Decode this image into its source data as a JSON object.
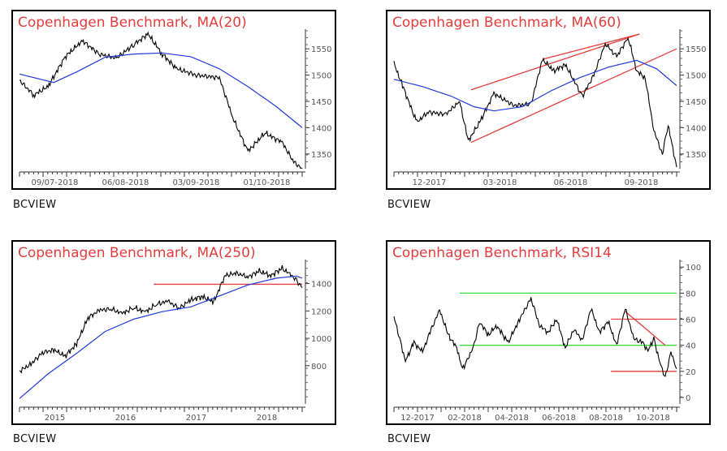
{
  "caption": "BCVIEW",
  "chart_data": [
    {
      "type": "line",
      "title": "Copenhagen Benchmark, MA(20)",
      "x_tick_labels": [
        "09/07-2018",
        "06/08-2018",
        "03/09-2018",
        "01/10-2018"
      ],
      "y_ticks": [
        1350,
        1400,
        1450,
        1500,
        1550
      ],
      "ylim": [
        1322,
        1578
      ],
      "n": 100,
      "series": [
        {
          "color": "#000000",
          "x": [
            0,
            5,
            10,
            16,
            22,
            28,
            34,
            40,
            45,
            50,
            55,
            62,
            70,
            75,
            80,
            86,
            92,
            96,
            99
          ],
          "y": [
            1490,
            1462,
            1478,
            1535,
            1565,
            1540,
            1532,
            1558,
            1578,
            1540,
            1512,
            1500,
            1495,
            1415,
            1355,
            1390,
            1372,
            1335,
            1322
          ]
        },
        {
          "color": "#1e3adc",
          "x": [
            0,
            12,
            20,
            30,
            40,
            50,
            60,
            70,
            80,
            90,
            99
          ],
          "y": [
            1502,
            1486,
            1506,
            1534,
            1540,
            1542,
            1535,
            1512,
            1478,
            1440,
            1400
          ]
        }
      ],
      "annotations": []
    },
    {
      "type": "line",
      "title": "Copenhagen Benchmark, MA(60)",
      "x_tick_labels": [
        "12-2017",
        "03-2018",
        "06-2018",
        "09-2018"
      ],
      "y_ticks": [
        1350,
        1400,
        1450,
        1500,
        1550
      ],
      "ylim": [
        1322,
        1578
      ],
      "n": 100,
      "series": [
        {
          "color": "#000000",
          "x": [
            0,
            3,
            8,
            12,
            18,
            23,
            26,
            30,
            35,
            42,
            48,
            52,
            56,
            60,
            66,
            70,
            74,
            78,
            82,
            85,
            88,
            91,
            94,
            96,
            99
          ],
          "y": [
            1522,
            1480,
            1410,
            1430,
            1425,
            1450,
            1375,
            1410,
            1465,
            1442,
            1445,
            1530,
            1508,
            1520,
            1460,
            1500,
            1560,
            1535,
            1572,
            1508,
            1495,
            1395,
            1350,
            1405,
            1325
          ]
        },
        {
          "color": "#1e3adc",
          "x": [
            0,
            10,
            20,
            28,
            35,
            45,
            55,
            65,
            75,
            85,
            92,
            99
          ],
          "y": [
            1492,
            1478,
            1460,
            1440,
            1432,
            1440,
            1470,
            1495,
            1515,
            1528,
            1512,
            1480
          ]
        }
      ],
      "annotations": [
        {
          "color": "#e53c3c",
          "x1": 27,
          "y1": 1472,
          "x2": 86,
          "y2": 1578
        },
        {
          "color": "#e53c3c",
          "x1": 27,
          "y1": 1372,
          "x2": 99,
          "y2": 1550
        },
        {
          "color": "#e53c3c",
          "x1": 52,
          "y1": 1530,
          "x2": 86,
          "y2": 1578
        }
      ]
    },
    {
      "type": "line",
      "title": "Copenhagen Benchmark, MA(250)",
      "x_tick_labels": [
        "2015",
        "2016",
        "2017",
        "2018"
      ],
      "y_ticks": [
        800,
        1000,
        1200,
        1400
      ],
      "ylim": [
        520,
        1540
      ],
      "n": 100,
      "series": [
        {
          "color": "#000000",
          "x": [
            0,
            4,
            8,
            12,
            16,
            20,
            24,
            28,
            32,
            36,
            40,
            44,
            48,
            52,
            56,
            60,
            64,
            68,
            72,
            76,
            80,
            84,
            88,
            92,
            95,
            97,
            99
          ],
          "y": [
            760,
            810,
            895,
            915,
            870,
            960,
            1150,
            1205,
            1215,
            1180,
            1225,
            1190,
            1250,
            1270,
            1220,
            1280,
            1305,
            1265,
            1460,
            1475,
            1450,
            1490,
            1460,
            1510,
            1465,
            1425,
            1370
          ]
        },
        {
          "color": "#1e3adc",
          "x": [
            0,
            10,
            20,
            30,
            40,
            50,
            60,
            70,
            80,
            90,
            97,
            99
          ],
          "y": [
            560,
            740,
            890,
            1050,
            1140,
            1195,
            1230,
            1310,
            1390,
            1440,
            1455,
            1440
          ]
        }
      ],
      "annotations": [
        {
          "color": "#e53c3c",
          "x1": 47,
          "y1": 1395,
          "x2": 99,
          "y2": 1395
        }
      ]
    },
    {
      "type": "line",
      "title": "Copenhagen Benchmark, RSI14",
      "x_tick_labels": [
        "12-2017",
        "02-2018",
        "04-2018",
        "06-2018",
        "08-2018",
        "10-2018"
      ],
      "y_ticks": [
        0,
        20,
        40,
        60,
        80,
        100
      ],
      "ylim": [
        -5,
        102
      ],
      "n": 100,
      "series": [
        {
          "color": "#000000",
          "x": [
            0,
            2,
            4,
            7,
            10,
            13,
            16,
            19,
            22,
            24,
            26,
            28,
            30,
            33,
            36,
            40,
            44,
            48,
            51,
            54,
            57,
            60,
            63,
            66,
            69,
            72,
            75,
            78,
            81,
            84,
            87,
            89,
            91,
            93,
            95,
            97,
            99
          ],
          "y": [
            62,
            45,
            28,
            42,
            35,
            52,
            67,
            48,
            38,
            22,
            30,
            40,
            58,
            48,
            55,
            42,
            60,
            76,
            55,
            50,
            60,
            38,
            52,
            44,
            68,
            50,
            58,
            40,
            68,
            45,
            42,
            36,
            45,
            28,
            15,
            35,
            22
          ]
        }
      ],
      "annotations": [
        {
          "color": "#3ddc3d",
          "x1": 23,
          "y1": 80,
          "x2": 99,
          "y2": 80
        },
        {
          "color": "#3ddc3d",
          "x1": 23,
          "y1": 40,
          "x2": 99,
          "y2": 40
        },
        {
          "color": "#e53c3c",
          "x1": 76,
          "y1": 60,
          "x2": 99,
          "y2": 60
        },
        {
          "color": "#e53c3c",
          "x1": 76,
          "y1": 20,
          "x2": 99,
          "y2": 20
        },
        {
          "color": "#e53c3c",
          "x1": 81,
          "y1": 66,
          "x2": 95,
          "y2": 40
        }
      ]
    }
  ]
}
